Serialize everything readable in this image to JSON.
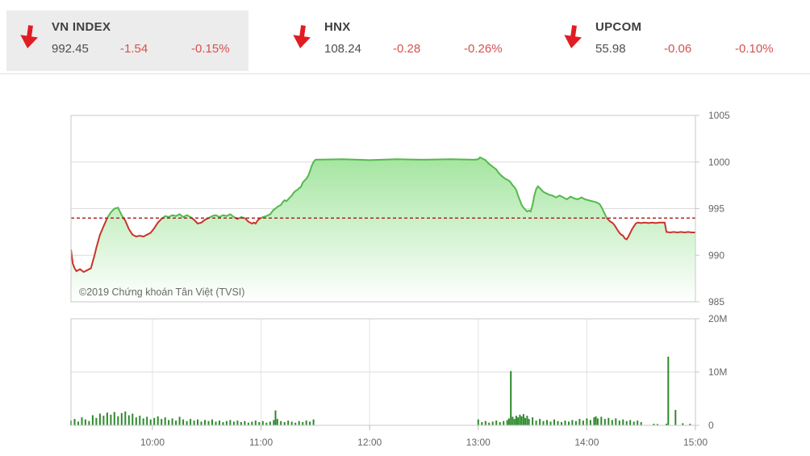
{
  "header": {
    "down_color": "#e01d23",
    "indices": [
      {
        "name": "VN INDEX",
        "value": "992.45",
        "change": "-1.54",
        "change_pct": "-0.15%",
        "direction": "down",
        "selected": true
      },
      {
        "name": "HNX",
        "value": "108.24",
        "change": "-0.28",
        "change_pct": "-0.26%",
        "direction": "down",
        "selected": false
      },
      {
        "name": "UPCOM",
        "value": "55.98",
        "change": "-0.06",
        "change_pct": "-0.10%",
        "direction": "down",
        "selected": false
      }
    ]
  },
  "watermark": "©2019 Chứng khoán Tân Việt (TVSI)",
  "chart_data": {
    "type": "area",
    "title": "VN INDEX intraday",
    "price": {
      "type": "area",
      "ylim": [
        985,
        1005
      ],
      "yticks": [
        1005,
        1000,
        995,
        990,
        985
      ],
      "reference_value": 993.99,
      "line_color_above": "#55b84e",
      "line_color_below": "#c9342a",
      "reference_color": "#a31a15",
      "fill_top_color": "#8ade84",
      "points": [
        [
          555,
          990.6
        ],
        [
          556,
          989.1
        ],
        [
          557,
          988.6
        ],
        [
          558,
          988.3
        ],
        [
          560,
          988.5
        ],
        [
          562,
          988.2
        ],
        [
          564,
          988.4
        ],
        [
          566,
          988.6
        ],
        [
          567,
          989.3
        ],
        [
          568,
          990.0
        ],
        [
          569,
          990.8
        ],
        [
          571,
          992.2
        ],
        [
          573,
          993.1
        ],
        [
          575,
          994.0
        ],
        [
          577,
          994.6
        ],
        [
          579,
          995.0
        ],
        [
          581,
          995.1
        ],
        [
          583,
          994.3
        ],
        [
          585,
          993.7
        ],
        [
          587,
          992.8
        ],
        [
          589,
          992.2
        ],
        [
          591,
          992.0
        ],
        [
          593,
          992.1
        ],
        [
          595,
          992.0
        ],
        [
          597,
          992.2
        ],
        [
          599,
          992.4
        ],
        [
          601,
          992.9
        ],
        [
          603,
          993.5
        ],
        [
          605,
          993.9
        ],
        [
          607,
          994.2
        ],
        [
          609,
          994.1
        ],
        [
          611,
          994.3
        ],
        [
          613,
          994.2
        ],
        [
          615,
          994.4
        ],
        [
          617,
          994.1
        ],
        [
          619,
          994.3
        ],
        [
          621,
          994.1
        ],
        [
          623,
          993.8
        ],
        [
          625,
          993.4
        ],
        [
          627,
          993.5
        ],
        [
          629,
          993.8
        ],
        [
          631,
          994.0
        ],
        [
          633,
          994.2
        ],
        [
          635,
          994.3
        ],
        [
          637,
          994.1
        ],
        [
          639,
          994.3
        ],
        [
          641,
          994.2
        ],
        [
          643,
          994.4
        ],
        [
          645,
          994.1
        ],
        [
          647,
          993.9
        ],
        [
          649,
          994.1
        ],
        [
          651,
          994.0
        ],
        [
          653,
          993.6
        ],
        [
          655,
          993.4
        ],
        [
          656,
          993.5
        ],
        [
          657,
          993.4
        ],
        [
          658,
          993.7
        ],
        [
          659,
          993.9
        ],
        [
          661,
          994.1
        ],
        [
          663,
          994.2
        ],
        [
          665,
          994.4
        ],
        [
          667,
          994.9
        ],
        [
          668,
          995.0
        ],
        [
          669,
          995.2
        ],
        [
          671,
          995.4
        ],
        [
          672,
          995.7
        ],
        [
          673,
          995.9
        ],
        [
          674,
          995.8
        ],
        [
          675,
          996.0
        ],
        [
          676,
          996.2
        ],
        [
          677,
          996.4
        ],
        [
          678,
          996.7
        ],
        [
          679,
          996.9
        ],
        [
          680,
          997.0
        ],
        [
          681,
          997.2
        ],
        [
          682,
          997.3
        ],
        [
          683,
          997.8
        ],
        [
          684,
          998.0
        ],
        [
          685,
          998.2
        ],
        [
          686,
          998.5
        ],
        [
          687,
          999.0
        ],
        [
          688,
          999.6
        ],
        [
          689,
          1000.0
        ],
        [
          690,
          1000.25
        ],
        [
          705,
          1000.3
        ],
        [
          720,
          1000.2
        ],
        [
          735,
          1000.3
        ],
        [
          750,
          1000.25
        ],
        [
          765,
          1000.3
        ],
        [
          778,
          1000.25
        ],
        [
          780,
          1000.3
        ],
        [
          781,
          1000.5
        ],
        [
          782,
          1000.4
        ],
        [
          784,
          1000.2
        ],
        [
          785,
          1000.0
        ],
        [
          786,
          999.8
        ],
        [
          788,
          999.5
        ],
        [
          790,
          999.2
        ],
        [
          791,
          998.9
        ],
        [
          793,
          998.5
        ],
        [
          795,
          998.2
        ],
        [
          797,
          998.0
        ],
        [
          798,
          997.8
        ],
        [
          799,
          997.5
        ],
        [
          800,
          997.3
        ],
        [
          801,
          997.0
        ],
        [
          802,
          996.4
        ],
        [
          803,
          995.9
        ],
        [
          804,
          995.4
        ],
        [
          805,
          995.1
        ],
        [
          806,
          994.9
        ],
        [
          807,
          994.7
        ],
        [
          808,
          994.8
        ],
        [
          809,
          994.7
        ],
        [
          810,
          995.4
        ],
        [
          811,
          996.4
        ],
        [
          812,
          997.1
        ],
        [
          813,
          997.4
        ],
        [
          814,
          997.2
        ],
        [
          815,
          997.0
        ],
        [
          816,
          996.8
        ],
        [
          817,
          996.7
        ],
        [
          819,
          996.5
        ],
        [
          821,
          996.4
        ],
        [
          823,
          996.2
        ],
        [
          825,
          996.4
        ],
        [
          827,
          996.2
        ],
        [
          829,
          996.0
        ],
        [
          831,
          996.3
        ],
        [
          833,
          996.1
        ],
        [
          835,
          996.0
        ],
        [
          837,
          996.2
        ],
        [
          839,
          996.0
        ],
        [
          841,
          995.9
        ],
        [
          843,
          995.8
        ],
        [
          845,
          995.7
        ],
        [
          846,
          995.6
        ],
        [
          847,
          995.5
        ],
        [
          848,
          995.2
        ],
        [
          849,
          994.8
        ],
        [
          850,
          994.4
        ],
        [
          851,
          994.0
        ],
        [
          852,
          993.8
        ],
        [
          853,
          993.6
        ],
        [
          854,
          993.5
        ],
        [
          855,
          993.3
        ],
        [
          856,
          993.0
        ],
        [
          857,
          992.7
        ],
        [
          858,
          992.4
        ],
        [
          859,
          992.2
        ],
        [
          860,
          992.1
        ],
        [
          861,
          991.8
        ],
        [
          862,
          991.7
        ],
        [
          863,
          992.0
        ],
        [
          864,
          992.4
        ],
        [
          865,
          992.8
        ],
        [
          866,
          993.1
        ],
        [
          867,
          993.4
        ],
        [
          868,
          993.5
        ],
        [
          870,
          993.45
        ],
        [
          872,
          993.5
        ],
        [
          874,
          993.45
        ],
        [
          876,
          993.5
        ],
        [
          878,
          993.45
        ],
        [
          880,
          993.5
        ],
        [
          882,
          993.5
        ],
        [
          883,
          993.5
        ],
        [
          884,
          992.5
        ],
        [
          886,
          992.45
        ],
        [
          888,
          992.5
        ],
        [
          890,
          992.45
        ],
        [
          892,
          992.5
        ],
        [
          894,
          992.45
        ],
        [
          896,
          992.5
        ],
        [
          898,
          992.45
        ],
        [
          900,
          992.45
        ]
      ]
    },
    "volume": {
      "type": "bar",
      "ymax_millions": 20,
      "ytick_labels": [
        "20M",
        "10M",
        "0"
      ],
      "ytick_values": [
        20,
        10,
        0
      ],
      "bar_color": "#2d8a2d",
      "bars": [
        [
          555,
          0.9
        ],
        [
          557,
          1.2
        ],
        [
          559,
          0.7
        ],
        [
          561,
          1.5
        ],
        [
          563,
          1.1
        ],
        [
          565,
          0.8
        ],
        [
          567,
          1.9
        ],
        [
          569,
          1.4
        ],
        [
          571,
          2.2
        ],
        [
          573,
          1.8
        ],
        [
          575,
          2.4
        ],
        [
          577,
          2.0
        ],
        [
          579,
          2.5
        ],
        [
          581,
          1.7
        ],
        [
          583,
          2.3
        ],
        [
          585,
          2.6
        ],
        [
          587,
          1.9
        ],
        [
          589,
          2.2
        ],
        [
          591,
          1.5
        ],
        [
          593,
          1.8
        ],
        [
          595,
          1.3
        ],
        [
          597,
          1.6
        ],
        [
          599,
          1.1
        ],
        [
          601,
          1.4
        ],
        [
          603,
          1.7
        ],
        [
          605,
          1.2
        ],
        [
          607,
          1.5
        ],
        [
          609,
          1.0
        ],
        [
          611,
          1.3
        ],
        [
          613,
          0.9
        ],
        [
          615,
          1.6
        ],
        [
          617,
          1.1
        ],
        [
          619,
          0.8
        ],
        [
          621,
          1.2
        ],
        [
          623,
          0.9
        ],
        [
          625,
          1.1
        ],
        [
          627,
          0.7
        ],
        [
          629,
          1.0
        ],
        [
          631,
          0.8
        ],
        [
          633,
          1.1
        ],
        [
          635,
          0.7
        ],
        [
          637,
          0.9
        ],
        [
          639,
          0.6
        ],
        [
          641,
          0.8
        ],
        [
          643,
          1.0
        ],
        [
          645,
          0.7
        ],
        [
          647,
          0.9
        ],
        [
          649,
          0.6
        ],
        [
          651,
          0.8
        ],
        [
          653,
          0.5
        ],
        [
          655,
          0.7
        ],
        [
          657,
          0.9
        ],
        [
          659,
          0.6
        ],
        [
          661,
          0.8
        ],
        [
          663,
          0.5
        ],
        [
          665,
          0.7
        ],
        [
          667,
          1.0
        ],
        [
          668,
          2.8
        ],
        [
          669,
          1.2
        ],
        [
          671,
          0.8
        ],
        [
          673,
          0.6
        ],
        [
          675,
          0.9
        ],
        [
          677,
          0.7
        ],
        [
          679,
          0.5
        ],
        [
          681,
          0.8
        ],
        [
          683,
          0.6
        ],
        [
          685,
          0.9
        ],
        [
          687,
          0.7
        ],
        [
          689,
          1.1
        ],
        [
          780,
          1.1
        ],
        [
          782,
          0.6
        ],
        [
          784,
          0.8
        ],
        [
          786,
          0.5
        ],
        [
          788,
          0.7
        ],
        [
          790,
          0.9
        ],
        [
          792,
          0.6
        ],
        [
          794,
          0.8
        ],
        [
          796,
          1.0
        ],
        [
          797,
          1.3
        ],
        [
          798,
          10.2
        ],
        [
          799,
          1.6
        ],
        [
          800,
          1.2
        ],
        [
          801,
          1.8
        ],
        [
          802,
          1.5
        ],
        [
          803,
          2.0
        ],
        [
          804,
          1.7
        ],
        [
          805,
          2.1
        ],
        [
          806,
          1.4
        ],
        [
          807,
          1.8
        ],
        [
          808,
          1.2
        ],
        [
          810,
          1.5
        ],
        [
          812,
          0.9
        ],
        [
          814,
          1.2
        ],
        [
          816,
          0.8
        ],
        [
          818,
          1.0
        ],
        [
          820,
          0.7
        ],
        [
          822,
          1.1
        ],
        [
          824,
          0.8
        ],
        [
          826,
          0.6
        ],
        [
          828,
          0.9
        ],
        [
          830,
          0.7
        ],
        [
          832,
          1.0
        ],
        [
          834,
          0.8
        ],
        [
          836,
          1.2
        ],
        [
          838,
          0.9
        ],
        [
          840,
          1.3
        ],
        [
          842,
          1.0
        ],
        [
          844,
          1.5
        ],
        [
          845,
          1.7
        ],
        [
          846,
          1.3
        ],
        [
          848,
          1.6
        ],
        [
          850,
          1.2
        ],
        [
          852,
          1.4
        ],
        [
          854,
          1.0
        ],
        [
          856,
          1.3
        ],
        [
          858,
          0.9
        ],
        [
          860,
          1.1
        ],
        [
          862,
          0.8
        ],
        [
          864,
          1.0
        ],
        [
          866,
          0.7
        ],
        [
          868,
          0.9
        ],
        [
          870,
          0.6
        ],
        [
          877,
          0.3
        ],
        [
          879,
          0.25
        ],
        [
          884,
          0.3
        ],
        [
          885,
          12.9
        ],
        [
          889,
          2.9
        ],
        [
          893,
          0.4
        ],
        [
          897,
          0.3
        ]
      ]
    },
    "x_axis": {
      "start_minute": 555,
      "end_minute": 900,
      "tick_minutes": [
        600,
        660,
        720,
        780,
        840,
        900
      ],
      "tick_labels": [
        "10:00",
        "11:00",
        "12:00",
        "13:00",
        "14:00",
        "15:00"
      ]
    }
  }
}
